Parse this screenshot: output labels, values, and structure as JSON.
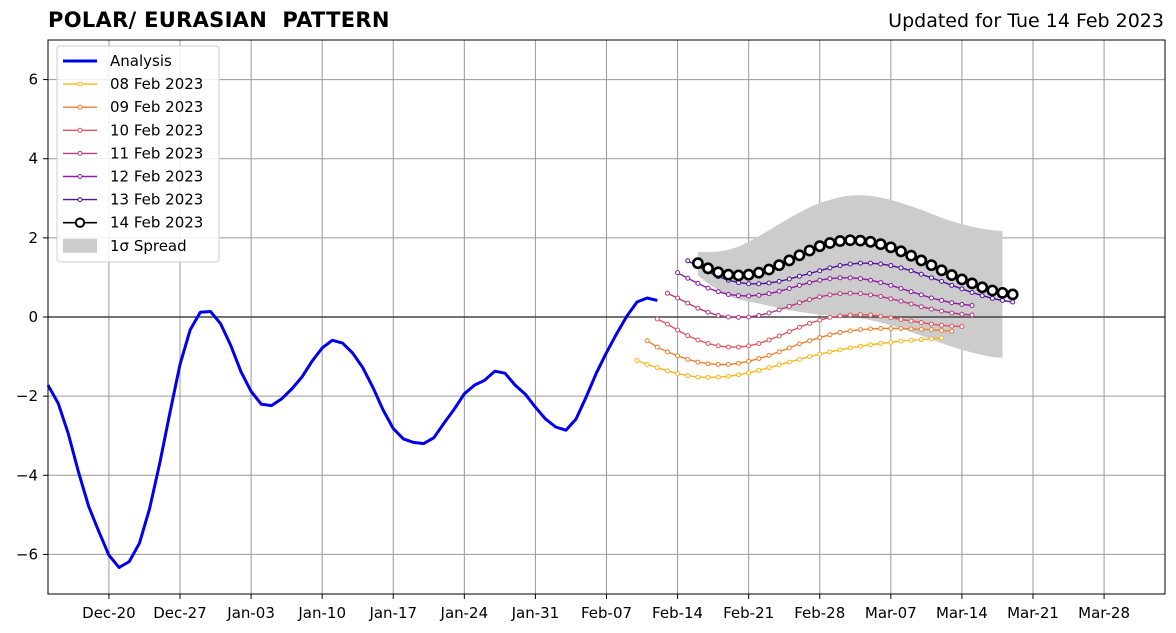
{
  "title": "POLAR/ EURASIAN  PATTERN",
  "subtitle": "Updated for Tue 14 Feb 2023",
  "chart_data": {
    "type": "line",
    "title": "POLAR/ EURASIAN  PATTERN",
    "subtitle": "Updated for Tue 14 Feb 2023",
    "xlabel": "",
    "ylabel": "",
    "x_axis": "date",
    "xlim": [
      "2022-12-14",
      "2023-04-03"
    ],
    "ylim": [
      -7,
      7
    ],
    "x_ticks": [
      "Dec-20",
      "Dec-27",
      "Jan-03",
      "Jan-10",
      "Jan-17",
      "Jan-24",
      "Jan-31",
      "Feb-07",
      "Feb-14",
      "Feb-21",
      "Feb-28",
      "Mar-07",
      "Mar-14",
      "Mar-21",
      "Mar-28"
    ],
    "x_tick_dates": [
      "2022-12-20",
      "2022-12-27",
      "2023-01-03",
      "2023-01-10",
      "2023-01-17",
      "2023-01-24",
      "2023-01-31",
      "2023-02-07",
      "2023-02-14",
      "2023-02-21",
      "2023-02-28",
      "2023-03-07",
      "2023-03-14",
      "2023-03-21",
      "2023-03-28"
    ],
    "y_ticks": [
      -6,
      -4,
      -2,
      0,
      2,
      4,
      6
    ],
    "grid": true,
    "zero_line": true,
    "legend_position": "top-left",
    "legend_spread_label": "1σ Spread",
    "series": [
      {
        "name": "Analysis",
        "color": "#0000ee",
        "marker": "none",
        "start": "2022-12-14",
        "values": [
          -1.72,
          -2.18,
          -2.95,
          -3.92,
          -4.78,
          -5.42,
          -6.02,
          -6.33,
          -6.18,
          -5.72,
          -4.85,
          -3.7,
          -2.42,
          -1.2,
          -0.32,
          0.12,
          0.14,
          -0.17,
          -0.72,
          -1.38,
          -1.88,
          -2.2,
          -2.24,
          -2.07,
          -1.82,
          -1.52,
          -1.12,
          -0.78,
          -0.59,
          -0.66,
          -0.91,
          -1.28,
          -1.78,
          -2.35,
          -2.82,
          -3.08,
          -3.17,
          -3.2,
          -3.05,
          -2.68,
          -2.33,
          -1.94,
          -1.72,
          -1.6,
          -1.37,
          -1.42,
          -1.72,
          -1.95,
          -2.28,
          -2.58,
          -2.78,
          -2.86,
          -2.58,
          -2.02,
          -1.42,
          -0.9,
          -0.42,
          0.02,
          0.38,
          0.48,
          0.42
        ]
      },
      {
        "name": "08 Feb 2023",
        "color": "#fbb61a",
        "marker": "dot",
        "start": "2023-02-10",
        "values": [
          -1.1,
          -1.2,
          -1.28,
          -1.36,
          -1.43,
          -1.48,
          -1.52,
          -1.53,
          -1.52,
          -1.5,
          -1.46,
          -1.41,
          -1.35,
          -1.28,
          -1.21,
          -1.14,
          -1.07,
          -1.0,
          -0.94,
          -0.88,
          -0.83,
          -0.78,
          -0.74,
          -0.7,
          -0.67,
          -0.64,
          -0.61,
          -0.59,
          -0.57,
          -0.55,
          -0.53
        ]
      },
      {
        "name": "09 Feb 2023",
        "color": "#ef7f30",
        "marker": "dot",
        "start": "2023-02-11",
        "values": [
          -0.6,
          -0.76,
          -0.88,
          -0.98,
          -1.07,
          -1.14,
          -1.18,
          -1.2,
          -1.2,
          -1.17,
          -1.12,
          -1.05,
          -0.97,
          -0.88,
          -0.78,
          -0.68,
          -0.6,
          -0.52,
          -0.45,
          -0.39,
          -0.35,
          -0.32,
          -0.3,
          -0.29,
          -0.29,
          -0.29,
          -0.3,
          -0.31,
          -0.32,
          -0.34,
          -0.36
        ]
      },
      {
        "name": "10 Feb 2023",
        "color": "#e05560",
        "marker": "dot",
        "start": "2023-02-12",
        "values": [
          -0.05,
          -0.18,
          -0.33,
          -0.47,
          -0.58,
          -0.67,
          -0.73,
          -0.76,
          -0.76,
          -0.73,
          -0.67,
          -0.58,
          -0.48,
          -0.37,
          -0.26,
          -0.16,
          -0.08,
          -0.01,
          0.03,
          0.05,
          0.06,
          0.05,
          0.02,
          -0.02,
          -0.06,
          -0.1,
          -0.14,
          -0.18,
          -0.21,
          -0.23,
          -0.24
        ]
      },
      {
        "name": "11 Feb 2023",
        "color": "#b43b83",
        "marker": "dot",
        "start": "2023-02-13",
        "values": [
          0.6,
          0.48,
          0.35,
          0.22,
          0.12,
          0.04,
          0.0,
          -0.01,
          0.0,
          0.04,
          0.1,
          0.18,
          0.27,
          0.36,
          0.44,
          0.51,
          0.56,
          0.59,
          0.6,
          0.59,
          0.56,
          0.52,
          0.46,
          0.4,
          0.33,
          0.26,
          0.2,
          0.15,
          0.1,
          0.07,
          0.05
        ]
      },
      {
        "name": "12 Feb 2023",
        "color": "#8b1ea0",
        "marker": "dot",
        "start": "2023-02-14",
        "values": [
          1.12,
          0.98,
          0.85,
          0.73,
          0.64,
          0.57,
          0.54,
          0.53,
          0.55,
          0.59,
          0.65,
          0.72,
          0.8,
          0.87,
          0.93,
          0.97,
          0.99,
          0.99,
          0.97,
          0.93,
          0.87,
          0.8,
          0.72,
          0.64,
          0.56,
          0.48,
          0.42,
          0.36,
          0.32,
          0.29
        ]
      },
      {
        "name": "13 Feb 2023",
        "color": "#51129c",
        "marker": "dot",
        "start": "2023-02-15",
        "values": [
          1.42,
          1.28,
          1.14,
          1.02,
          0.93,
          0.87,
          0.84,
          0.84,
          0.86,
          0.9,
          0.96,
          1.03,
          1.1,
          1.17,
          1.24,
          1.3,
          1.34,
          1.36,
          1.36,
          1.34,
          1.3,
          1.24,
          1.17,
          1.08,
          0.99,
          0.9,
          0.8,
          0.71,
          0.62,
          0.54,
          0.47,
          0.42,
          0.38
        ]
      },
      {
        "name": "14 Feb 2023",
        "color": "#000000",
        "marker": "circle",
        "start": "2023-02-16",
        "values": [
          1.36,
          1.23,
          1.13,
          1.07,
          1.05,
          1.07,
          1.12,
          1.2,
          1.31,
          1.43,
          1.56,
          1.68,
          1.79,
          1.87,
          1.92,
          1.94,
          1.93,
          1.9,
          1.84,
          1.76,
          1.66,
          1.55,
          1.43,
          1.31,
          1.18,
          1.06,
          0.95,
          0.85,
          0.75,
          0.67,
          0.61,
          0.57
        ]
      }
    ],
    "spread": {
      "name": "1σ Spread",
      "color": "#cccccc",
      "start": "2023-02-16",
      "upper": [
        1.65,
        1.64,
        1.65,
        1.7,
        1.78,
        1.9,
        2.04,
        2.19,
        2.35,
        2.5,
        2.64,
        2.77,
        2.88,
        2.96,
        3.03,
        3.07,
        3.08,
        3.06,
        3.02,
        2.96,
        2.88,
        2.8,
        2.71,
        2.61,
        2.51,
        2.42,
        2.35,
        2.28,
        2.23,
        2.19,
        2.17
      ],
      "lower": [
        1.05,
        0.85,
        0.68,
        0.52,
        0.44,
        0.39,
        0.34,
        0.28,
        0.22,
        0.17,
        0.13,
        0.09,
        0.06,
        0.04,
        0.02,
        0.0,
        -0.03,
        -0.08,
        -0.14,
        -0.21,
        -0.29,
        -0.38,
        -0.47,
        -0.56,
        -0.66,
        -0.75,
        -0.83,
        -0.9,
        -0.96,
        -1.01,
        -1.03
      ]
    }
  }
}
